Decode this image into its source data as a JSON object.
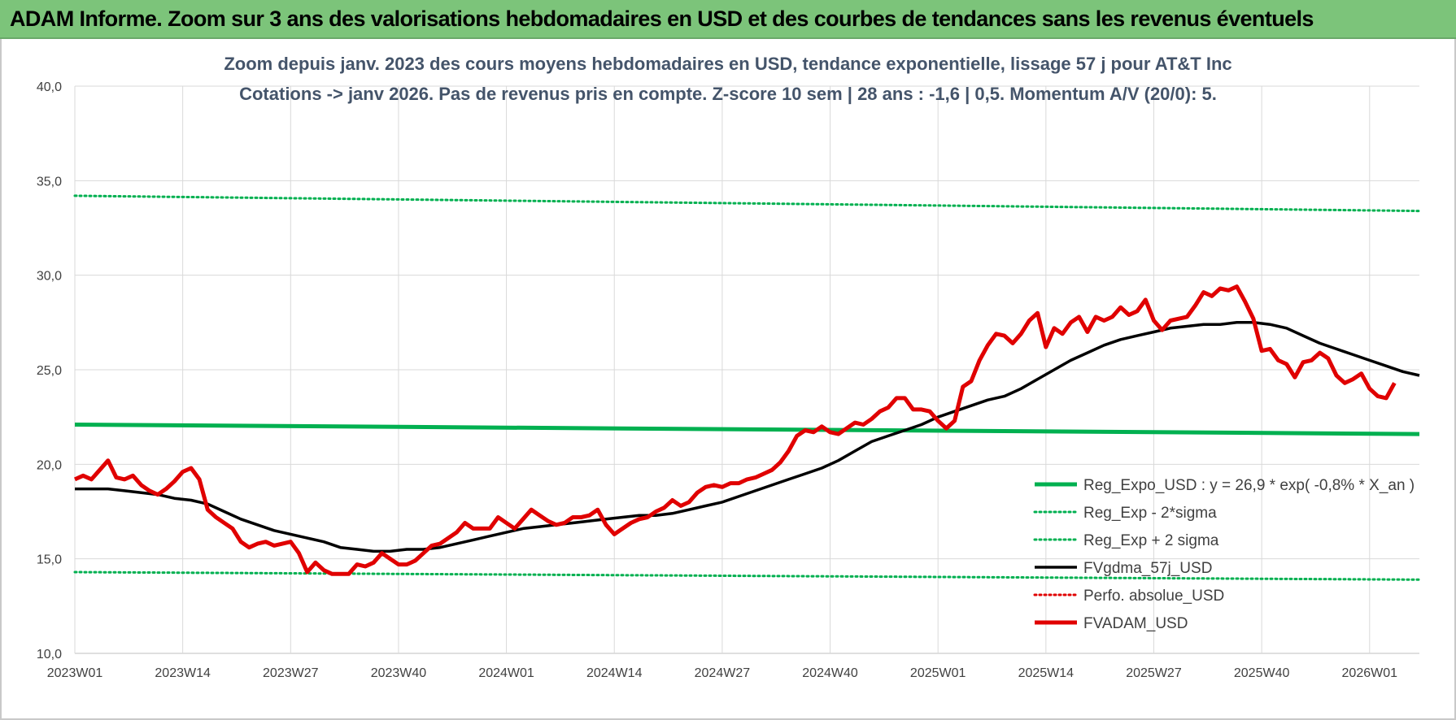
{
  "header": {
    "title": "ADAM Informe. Zoom sur 3 ans des valorisations hebdomadaires en USD et des courbes de tendances sans les revenus éventuels"
  },
  "chart_data": {
    "type": "line",
    "title": "Zoom depuis janv. 2023 des cours moyens hebdomadaires en USD, tendance exponentielle, lissage 57 j pour AT&T Inc",
    "subtitle": "Cotations -> janv 2026. Pas de revenus pris en compte. Z-score 10 sem | 28 ans : -1,6 | 0,5. Momentum A/V (20/0): 5.",
    "xlabel": "",
    "ylabel": "",
    "ylim": [
      10,
      40
    ],
    "y_ticks": [
      "10,0",
      "15,0",
      "20,0",
      "25,0",
      "30,0",
      "35,0",
      "40,0"
    ],
    "x_ticks": [
      "2023W01",
      "2023W14",
      "2023W27",
      "2023W40",
      "2024W01",
      "2024W14",
      "2024W27",
      "2024W40",
      "2025W01",
      "2025W14",
      "2025W27",
      "2025W40",
      "2026W01"
    ],
    "x_range_weeks": [
      0,
      162
    ],
    "grid": true,
    "legend_position": "bottom-right",
    "series": [
      {
        "name": "Reg_Expo_USD : y = 26,9 * exp( -0,8% *  X_an )",
        "style": "solid-thick",
        "color": "#00b050",
        "points": [
          [
            0,
            22.1
          ],
          [
            162,
            21.6
          ]
        ]
      },
      {
        "name": "Reg_Exp - 2*sigma",
        "style": "dotted",
        "color": "#00b050",
        "points": [
          [
            0,
            14.3
          ],
          [
            162,
            13.9
          ]
        ]
      },
      {
        "name": "Reg_Exp + 2 sigma",
        "style": "dotted",
        "color": "#00b050",
        "points": [
          [
            0,
            34.2
          ],
          [
            162,
            33.4
          ]
        ]
      },
      {
        "name": "FVgdma_57j_USD",
        "style": "solid",
        "color": "#000000",
        "points": [
          [
            0,
            18.7
          ],
          [
            2,
            18.7
          ],
          [
            4,
            18.7
          ],
          [
            6,
            18.6
          ],
          [
            8,
            18.5
          ],
          [
            10,
            18.4
          ],
          [
            12,
            18.2
          ],
          [
            14,
            18.1
          ],
          [
            16,
            17.9
          ],
          [
            18,
            17.5
          ],
          [
            20,
            17.1
          ],
          [
            22,
            16.8
          ],
          [
            24,
            16.5
          ],
          [
            26,
            16.3
          ],
          [
            28,
            16.1
          ],
          [
            30,
            15.9
          ],
          [
            32,
            15.6
          ],
          [
            34,
            15.5
          ],
          [
            36,
            15.4
          ],
          [
            38,
            15.4
          ],
          [
            40,
            15.5
          ],
          [
            42,
            15.5
          ],
          [
            44,
            15.6
          ],
          [
            46,
            15.8
          ],
          [
            48,
            16.0
          ],
          [
            50,
            16.2
          ],
          [
            52,
            16.4
          ],
          [
            54,
            16.6
          ],
          [
            56,
            16.7
          ],
          [
            58,
            16.8
          ],
          [
            60,
            16.9
          ],
          [
            62,
            17.0
          ],
          [
            64,
            17.1
          ],
          [
            66,
            17.2
          ],
          [
            68,
            17.3
          ],
          [
            70,
            17.3
          ],
          [
            72,
            17.4
          ],
          [
            74,
            17.6
          ],
          [
            76,
            17.8
          ],
          [
            78,
            18.0
          ],
          [
            80,
            18.3
          ],
          [
            82,
            18.6
          ],
          [
            84,
            18.9
          ],
          [
            86,
            19.2
          ],
          [
            88,
            19.5
          ],
          [
            90,
            19.8
          ],
          [
            92,
            20.2
          ],
          [
            94,
            20.7
          ],
          [
            96,
            21.2
          ],
          [
            98,
            21.5
          ],
          [
            100,
            21.8
          ],
          [
            102,
            22.1
          ],
          [
            104,
            22.5
          ],
          [
            106,
            22.8
          ],
          [
            108,
            23.1
          ],
          [
            110,
            23.4
          ],
          [
            112,
            23.6
          ],
          [
            114,
            24.0
          ],
          [
            116,
            24.5
          ],
          [
            118,
            25.0
          ],
          [
            120,
            25.5
          ],
          [
            122,
            25.9
          ],
          [
            124,
            26.3
          ],
          [
            126,
            26.6
          ],
          [
            128,
            26.8
          ],
          [
            130,
            27.0
          ],
          [
            132,
            27.2
          ],
          [
            134,
            27.3
          ],
          [
            136,
            27.4
          ],
          [
            138,
            27.4
          ],
          [
            140,
            27.5
          ],
          [
            142,
            27.5
          ],
          [
            144,
            27.4
          ],
          [
            146,
            27.2
          ],
          [
            148,
            26.8
          ],
          [
            150,
            26.4
          ],
          [
            152,
            26.1
          ],
          [
            154,
            25.8
          ],
          [
            156,
            25.5
          ],
          [
            158,
            25.2
          ],
          [
            160,
            24.9
          ],
          [
            162,
            24.7
          ]
        ]
      },
      {
        "name": "Perfo. absolue_USD",
        "style": "dotted",
        "color": "#e00000",
        "points": []
      },
      {
        "name": "FVADAM_USD",
        "style": "solid-thick",
        "color": "#e00000",
        "points": [
          [
            0,
            19.2
          ],
          [
            1,
            19.4
          ],
          [
            2,
            19.2
          ],
          [
            3,
            19.7
          ],
          [
            4,
            20.2
          ],
          [
            5,
            19.3
          ],
          [
            6,
            19.2
          ],
          [
            7,
            19.4
          ],
          [
            8,
            18.9
          ],
          [
            9,
            18.6
          ],
          [
            10,
            18.4
          ],
          [
            11,
            18.7
          ],
          [
            12,
            19.1
          ],
          [
            13,
            19.6
          ],
          [
            14,
            19.8
          ],
          [
            15,
            19.2
          ],
          [
            16,
            17.6
          ],
          [
            17,
            17.2
          ],
          [
            18,
            16.9
          ],
          [
            19,
            16.6
          ],
          [
            20,
            15.9
          ],
          [
            21,
            15.6
          ],
          [
            22,
            15.8
          ],
          [
            23,
            15.9
          ],
          [
            24,
            15.7
          ],
          [
            25,
            15.8
          ],
          [
            26,
            15.9
          ],
          [
            27,
            15.3
          ],
          [
            28,
            14.3
          ],
          [
            29,
            14.8
          ],
          [
            30,
            14.4
          ],
          [
            31,
            14.2
          ],
          [
            32,
            14.2
          ],
          [
            33,
            14.2
          ],
          [
            34,
            14.7
          ],
          [
            35,
            14.6
          ],
          [
            36,
            14.8
          ],
          [
            37,
            15.3
          ],
          [
            38,
            15.0
          ],
          [
            39,
            14.7
          ],
          [
            40,
            14.7
          ],
          [
            41,
            14.9
          ],
          [
            42,
            15.3
          ],
          [
            43,
            15.7
          ],
          [
            44,
            15.8
          ],
          [
            45,
            16.1
          ],
          [
            46,
            16.4
          ],
          [
            47,
            16.9
          ],
          [
            48,
            16.6
          ],
          [
            49,
            16.6
          ],
          [
            50,
            16.6
          ],
          [
            51,
            17.2
          ],
          [
            52,
            16.9
          ],
          [
            53,
            16.6
          ],
          [
            54,
            17.1
          ],
          [
            55,
            17.6
          ],
          [
            56,
            17.3
          ],
          [
            57,
            17.0
          ],
          [
            58,
            16.8
          ],
          [
            59,
            16.9
          ],
          [
            60,
            17.2
          ],
          [
            61,
            17.2
          ],
          [
            62,
            17.3
          ],
          [
            63,
            17.6
          ],
          [
            64,
            16.8
          ],
          [
            65,
            16.3
          ],
          [
            66,
            16.6
          ],
          [
            67,
            16.9
          ],
          [
            68,
            17.1
          ],
          [
            69,
            17.2
          ],
          [
            70,
            17.5
          ],
          [
            71,
            17.7
          ],
          [
            72,
            18.1
          ],
          [
            73,
            17.8
          ],
          [
            74,
            18.0
          ],
          [
            75,
            18.5
          ],
          [
            76,
            18.8
          ],
          [
            77,
            18.9
          ],
          [
            78,
            18.8
          ],
          [
            79,
            19.0
          ],
          [
            80,
            19.0
          ],
          [
            81,
            19.2
          ],
          [
            82,
            19.3
          ],
          [
            83,
            19.5
          ],
          [
            84,
            19.7
          ],
          [
            85,
            20.1
          ],
          [
            86,
            20.7
          ],
          [
            87,
            21.5
          ],
          [
            88,
            21.8
          ],
          [
            89,
            21.7
          ],
          [
            90,
            22.0
          ],
          [
            91,
            21.7
          ],
          [
            92,
            21.6
          ],
          [
            93,
            21.9
          ],
          [
            94,
            22.2
          ],
          [
            95,
            22.1
          ],
          [
            96,
            22.4
          ],
          [
            97,
            22.8
          ],
          [
            98,
            23.0
          ],
          [
            99,
            23.5
          ],
          [
            100,
            23.5
          ],
          [
            101,
            22.9
          ],
          [
            102,
            22.9
          ],
          [
            103,
            22.8
          ],
          [
            104,
            22.3
          ],
          [
            105,
            21.9
          ],
          [
            106,
            22.3
          ],
          [
            107,
            24.1
          ],
          [
            108,
            24.4
          ],
          [
            109,
            25.5
          ],
          [
            110,
            26.3
          ],
          [
            111,
            26.9
          ],
          [
            112,
            26.8
          ],
          [
            113,
            26.4
          ],
          [
            114,
            26.9
          ],
          [
            115,
            27.6
          ],
          [
            116,
            28.0
          ],
          [
            117,
            26.2
          ],
          [
            118,
            27.2
          ],
          [
            119,
            26.9
          ],
          [
            120,
            27.5
          ],
          [
            121,
            27.8
          ],
          [
            122,
            27.0
          ],
          [
            123,
            27.8
          ],
          [
            124,
            27.6
          ],
          [
            125,
            27.8
          ],
          [
            126,
            28.3
          ],
          [
            127,
            27.9
          ],
          [
            128,
            28.1
          ],
          [
            129,
            28.7
          ],
          [
            130,
            27.6
          ],
          [
            131,
            27.1
          ],
          [
            132,
            27.6
          ],
          [
            133,
            27.7
          ],
          [
            134,
            27.8
          ],
          [
            135,
            28.4
          ],
          [
            136,
            29.1
          ],
          [
            137,
            28.9
          ],
          [
            138,
            29.3
          ],
          [
            139,
            29.2
          ],
          [
            140,
            29.4
          ],
          [
            141,
            28.6
          ],
          [
            142,
            27.7
          ],
          [
            143,
            26.0
          ],
          [
            144,
            26.1
          ],
          [
            145,
            25.5
          ],
          [
            146,
            25.3
          ],
          [
            147,
            24.6
          ],
          [
            148,
            25.4
          ],
          [
            149,
            25.5
          ],
          [
            150,
            25.9
          ],
          [
            151,
            25.6
          ],
          [
            152,
            24.7
          ],
          [
            153,
            24.3
          ],
          [
            154,
            24.5
          ],
          [
            155,
            24.8
          ],
          [
            156,
            24.0
          ],
          [
            157,
            23.6
          ],
          [
            158,
            23.5
          ],
          [
            159,
            24.3
          ]
        ]
      }
    ]
  }
}
